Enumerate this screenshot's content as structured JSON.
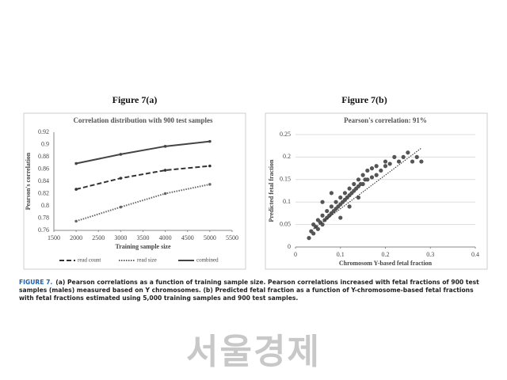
{
  "chart_data": [
    {
      "type": "line",
      "title": "Figure 7(a)",
      "subtitle": "Correlation distribution with 900 test samples",
      "x": [
        2000,
        3000,
        4000,
        5000
      ],
      "series": [
        {
          "name": "read count",
          "color": "#333333",
          "dash": "dashed",
          "values": [
            0.827,
            0.845,
            0.858,
            0.865
          ]
        },
        {
          "name": "read size",
          "color": "#666666",
          "dash": "dotted",
          "values": [
            0.775,
            0.798,
            0.82,
            0.835
          ]
        },
        {
          "name": "combined",
          "color": "#444444",
          "dash": "solid",
          "values": [
            0.869,
            0.884,
            0.897,
            0.905
          ]
        }
      ],
      "xlabel": "Training sample size",
      "ylabel": "Pearson's correlation",
      "xlim": [
        1500,
        5500
      ],
      "xticks": [
        1500,
        2000,
        2500,
        3000,
        3500,
        4000,
        4500,
        5000,
        5500
      ],
      "ylim": [
        0.76,
        0.92
      ],
      "yticks": [
        0.76,
        0.78,
        0.8,
        0.82,
        0.84,
        0.86,
        0.88,
        0.9,
        0.92
      ],
      "grid": false,
      "legend": "bottom"
    },
    {
      "type": "scatter",
      "title": "Figure 7(b)",
      "subtitle": "Pearson's correlation: 91%",
      "xlabel": "Chromosom Y-based fetal fraction",
      "ylabel": "Predicted fetal fraction",
      "color": "#555555",
      "x": [
        0.03,
        0.035,
        0.04,
        0.04,
        0.045,
        0.05,
        0.05,
        0.055,
        0.06,
        0.06,
        0.065,
        0.07,
        0.07,
        0.075,
        0.08,
        0.08,
        0.085,
        0.09,
        0.09,
        0.095,
        0.1,
        0.1,
        0.105,
        0.11,
        0.11,
        0.115,
        0.12,
        0.12,
        0.125,
        0.13,
        0.13,
        0.135,
        0.14,
        0.14,
        0.145,
        0.15,
        0.15,
        0.155,
        0.16,
        0.16,
        0.17,
        0.17,
        0.18,
        0.18,
        0.19,
        0.2,
        0.2,
        0.21,
        0.22,
        0.23,
        0.24,
        0.25,
        0.26,
        0.27,
        0.28,
        0.06,
        0.08,
        0.1,
        0.12,
        0.14
      ],
      "values": [
        0.02,
        0.035,
        0.03,
        0.05,
        0.045,
        0.04,
        0.06,
        0.055,
        0.05,
        0.07,
        0.06,
        0.065,
        0.08,
        0.07,
        0.075,
        0.09,
        0.08,
        0.085,
        0.1,
        0.09,
        0.095,
        0.11,
        0.1,
        0.105,
        0.12,
        0.11,
        0.115,
        0.13,
        0.12,
        0.125,
        0.14,
        0.13,
        0.135,
        0.15,
        0.14,
        0.14,
        0.16,
        0.15,
        0.15,
        0.17,
        0.155,
        0.175,
        0.16,
        0.18,
        0.17,
        0.18,
        0.19,
        0.185,
        0.2,
        0.19,
        0.2,
        0.21,
        0.19,
        0.2,
        0.19,
        0.1,
        0.12,
        0.065,
        0.09,
        0.11
      ],
      "trendline": {
        "x": [
          0.04,
          0.28
        ],
        "y": [
          0.04,
          0.22
        ]
      },
      "xlim": [
        0,
        0.4
      ],
      "xticks": [
        0,
        0.1,
        0.2,
        0.3,
        0.4
      ],
      "ylim": [
        0,
        0.25
      ],
      "yticks": [
        0,
        0.05,
        0.1,
        0.15,
        0.2,
        0.25
      ],
      "grid": true
    }
  ],
  "caption": {
    "label": "FIGURE 7.",
    "text": "(a) Pearson correlations as a function of training sample size. Pearson correlations increased with fetal fractions of 900 test samples (males) measured based on Y chromosomes. (b) Predicted fetal fraction as a function of Y-chromosome-based fetal fractions with fetal fractions estimated using 5,000 training samples and 900 test samples."
  },
  "watermark": "서울경제"
}
